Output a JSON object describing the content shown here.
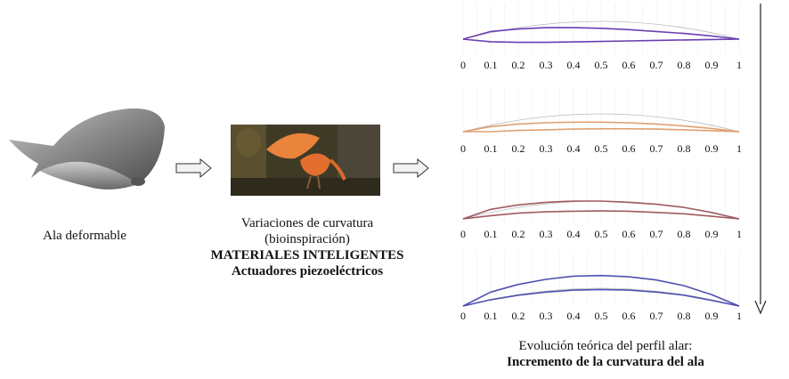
{
  "left": {
    "caption": "Ala deformable"
  },
  "middle": {
    "line1": "Variaciones de curvatura",
    "line2": "(bioinspiración)",
    "line3": "MATERIALES INTELIGENTES",
    "line4": "Actuadores piezoeléctricos"
  },
  "right": {
    "caption1": "Evolución teórica del perfil alar:",
    "caption2": "Incremento de la curvatura del ala"
  },
  "x_ticks": [
    "0",
    "0.1",
    "0.2",
    "0.3",
    "0.4",
    "0.5",
    "0.6",
    "0.7",
    "0.8",
    "0.9",
    "1"
  ],
  "chart_data": [
    {
      "type": "line",
      "title": "",
      "x": [
        0,
        0.1,
        0.2,
        0.3,
        0.4,
        0.5,
        0.6,
        0.7,
        0.8,
        0.9,
        1
      ],
      "xlim": [
        0,
        1
      ],
      "color": "#6a3fb0",
      "series": [
        {
          "values": [
            0,
            0.06,
            0.08,
            0.09,
            0.09,
            0.085,
            0.075,
            0.06,
            0.045,
            0.025,
            0
          ]
        },
        {
          "values": [
            0,
            -0.02,
            -0.025,
            -0.025,
            -0.022,
            -0.018,
            -0.014,
            -0.01,
            -0.006,
            -0.003,
            0
          ]
        }
      ]
    },
    {
      "type": "line",
      "title": "",
      "x": [
        0,
        0.1,
        0.2,
        0.3,
        0.4,
        0.5,
        0.6,
        0.7,
        0.8,
        0.9,
        1
      ],
      "xlim": [
        0,
        1
      ],
      "color": "#e0a070",
      "series": [
        {
          "values": [
            0,
            0.08,
            0.12,
            0.14,
            0.15,
            0.15,
            0.14,
            0.12,
            0.09,
            0.05,
            0
          ]
        },
        {
          "values": [
            0,
            0,
            0.02,
            0.03,
            0.04,
            0.045,
            0.045,
            0.04,
            0.03,
            0.015,
            0
          ]
        }
      ]
    },
    {
      "type": "line",
      "title": "",
      "x": [
        0,
        0.1,
        0.2,
        0.3,
        0.4,
        0.5,
        0.6,
        0.7,
        0.8,
        0.9,
        1
      ],
      "xlim": [
        0,
        1
      ],
      "color": "#a05a60",
      "series": [
        {
          "values": [
            0,
            0.15,
            0.22,
            0.26,
            0.28,
            0.28,
            0.26,
            0.23,
            0.18,
            0.1,
            0
          ]
        },
        {
          "values": [
            0,
            0.05,
            0.09,
            0.11,
            0.12,
            0.125,
            0.12,
            0.1,
            0.08,
            0.04,
            0
          ]
        }
      ]
    },
    {
      "type": "line",
      "title": "",
      "x": [
        0,
        0.1,
        0.2,
        0.3,
        0.4,
        0.5,
        0.6,
        0.7,
        0.8,
        0.9,
        1
      ],
      "xlim": [
        0,
        1
      ],
      "color": "#5050b0",
      "series": [
        {
          "values": [
            0,
            0.22,
            0.34,
            0.42,
            0.47,
            0.48,
            0.46,
            0.41,
            0.32,
            0.18,
            0
          ]
        },
        {
          "values": [
            0,
            0.1,
            0.17,
            0.22,
            0.25,
            0.26,
            0.25,
            0.22,
            0.17,
            0.09,
            0
          ]
        }
      ]
    }
  ]
}
